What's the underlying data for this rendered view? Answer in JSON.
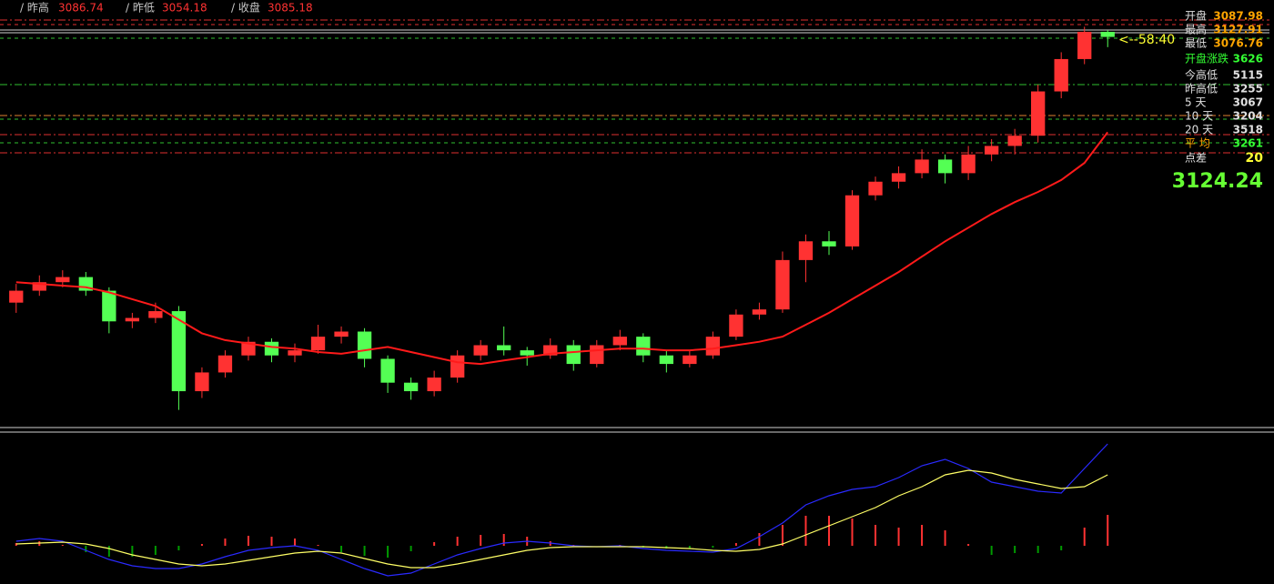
{
  "chart_data": [
    {
      "type": "candlestick",
      "info_bar": [
        {
          "label": "/ 昨高",
          "value": 3086.74
        },
        {
          "label": "/ 昨低",
          "value": 3054.18
        },
        {
          "label": "/ 收盘",
          "value": 3085.18
        }
      ],
      "quote_panel": [
        {
          "label": "开盘",
          "value": 3087.98,
          "color": "#ffa500"
        },
        {
          "label": "最高",
          "value": 3127.91,
          "color": "#ffa500"
        },
        {
          "label": "最低",
          "value": 3076.76,
          "color": "#ffa500"
        },
        {
          "label": "开盘涨跌",
          "value": 3626,
          "color": "#33ff33"
        },
        {
          "label": "今高低",
          "value": 5115,
          "color": "#e0e0e0"
        },
        {
          "label": "昨高低",
          "value": 3255,
          "color": "#e0e0e0"
        },
        {
          "label": "5  天",
          "value": 3067,
          "color": "#e0e0e0"
        },
        {
          "label": "10 天",
          "value": 3204,
          "color": "#e0e0e0"
        },
        {
          "label": "20 天",
          "value": 3518,
          "color": "#e0e0e0"
        },
        {
          "label": "平  均",
          "value": 3261,
          "color": "#33ff33"
        },
        {
          "label": "点差",
          "value": 20,
          "color": "#ffff33"
        }
      ],
      "last_price": 3124.24,
      "countdown": "<--58:40",
      "ylim": [
        2900,
        3135
      ],
      "up_color": "#ff3232",
      "down_color": "#54ff54",
      "open": [
        2968,
        2975,
        2980,
        2983,
        2975,
        2957,
        2959,
        2963,
        2916,
        2927,
        2937,
        2945,
        2937,
        2940,
        2948,
        2951,
        2935,
        2921,
        2916,
        2924,
        2937,
        2943,
        2940,
        2937,
        2943,
        2932,
        2943,
        2948,
        2937,
        2932,
        2937,
        2948,
        2961,
        2964,
        2993,
        3004,
        3001,
        3031,
        3039,
        3044,
        3052,
        3044,
        3055,
        3060,
        3066,
        3092,
        3111,
        3127
      ],
      "high": [
        2979,
        2984,
        2987,
        2986,
        2977,
        2962,
        2968,
        2966,
        2930,
        2940,
        2948,
        2947,
        2944,
        2955,
        2954,
        2953,
        2937,
        2924,
        2928,
        2940,
        2946,
        2954,
        2942,
        2947,
        2946,
        2946,
        2952,
        2950,
        2940,
        2940,
        2951,
        2964,
        2968,
        2998,
        3008,
        3010,
        3034,
        3042,
        3048,
        3058,
        3055,
        3060,
        3064,
        3070,
        3096,
        3115,
        3130,
        3128
      ],
      "low": [
        2962,
        2972,
        2977,
        2972,
        2950,
        2953,
        2956,
        2905,
        2912,
        2924,
        2934,
        2933,
        2933,
        2938,
        2944,
        2930,
        2915,
        2911,
        2913,
        2921,
        2934,
        2937,
        2931,
        2935,
        2928,
        2930,
        2940,
        2933,
        2927,
        2930,
        2935,
        2946,
        2958,
        2962,
        2980,
        2996,
        2999,
        3028,
        3035,
        3041,
        3038,
        3040,
        3051,
        3055,
        3062,
        3088,
        3108,
        3118
      ],
      "close": [
        2975,
        2980,
        2983,
        2975,
        2957,
        2959,
        2963,
        2916,
        2927,
        2937,
        2945,
        2937,
        2940,
        2948,
        2951,
        2935,
        2921,
        2916,
        2924,
        2937,
        2943,
        2940,
        2937,
        2943,
        2932,
        2943,
        2948,
        2937,
        2932,
        2937,
        2948,
        2961,
        2964,
        2993,
        3004,
        3001,
        3031,
        3039,
        3044,
        3052,
        3044,
        3055,
        3060,
        3066,
        3092,
        3111,
        3127,
        3124
      ],
      "lines": [
        {
          "color": "#ff1a1a",
          "values": [
            2980,
            2979,
            2978,
            2977,
            2974,
            2970,
            2966,
            2958,
            2950,
            2946,
            2944,
            2942,
            2941,
            2939,
            2938,
            2940,
            2942,
            2939,
            2936,
            2933,
            2932,
            2934,
            2936,
            2938,
            2939,
            2940,
            2941,
            2941,
            2940,
            2940,
            2941,
            2943,
            2945,
            2948,
            2955,
            2962,
            2970,
            2978,
            2986,
            2995,
            3004,
            3012,
            3020,
            3027,
            3033,
            3040,
            3050,
            3068
          ]
        }
      ]
    },
    {
      "type": "macd",
      "ylim": [
        -42,
        122
      ],
      "lines": [
        {
          "color": "#2a2aff",
          "values": [
            5,
            8,
            5,
            -5,
            -15,
            -22,
            -25,
            -25,
            -20,
            -12,
            -5,
            -2,
            0,
            -5,
            -15,
            -25,
            -33,
            -30,
            -20,
            -10,
            -3,
            3,
            5,
            3,
            0,
            -1,
            0,
            -3,
            -5,
            -6,
            -7,
            -3,
            10,
            25,
            45,
            55,
            62,
            65,
            75,
            88,
            95,
            85,
            70,
            65,
            60,
            58,
            85,
            112
          ]
        },
        {
          "color": "#ffff66",
          "values": [
            2,
            3,
            4,
            2,
            -3,
            -10,
            -15,
            -20,
            -22,
            -20,
            -16,
            -12,
            -8,
            -6,
            -8,
            -14,
            -20,
            -24,
            -24,
            -20,
            -15,
            -10,
            -5,
            -2,
            -1,
            -1,
            -1,
            -1,
            -2,
            -3,
            -5,
            -6,
            -4,
            2,
            12,
            22,
            32,
            42,
            55,
            65,
            78,
            83,
            80,
            73,
            68,
            63,
            65,
            78
          ]
        }
      ],
      "bars": [
        3,
        5,
        1,
        -7,
        -12,
        -12,
        -10,
        -5,
        2,
        8,
        11,
        10,
        8,
        1,
        -7,
        -11,
        -13,
        -6,
        4,
        10,
        12,
        13,
        10,
        5,
        1,
        0,
        1,
        -2,
        -3,
        -3,
        -2,
        3,
        14,
        23,
        33,
        33,
        30,
        23,
        20,
        23,
        17,
        2,
        -10,
        -8,
        -8,
        -5,
        20,
        34
      ],
      "up_color": "#ff3232",
      "down_color": "#009a00"
    }
  ]
}
